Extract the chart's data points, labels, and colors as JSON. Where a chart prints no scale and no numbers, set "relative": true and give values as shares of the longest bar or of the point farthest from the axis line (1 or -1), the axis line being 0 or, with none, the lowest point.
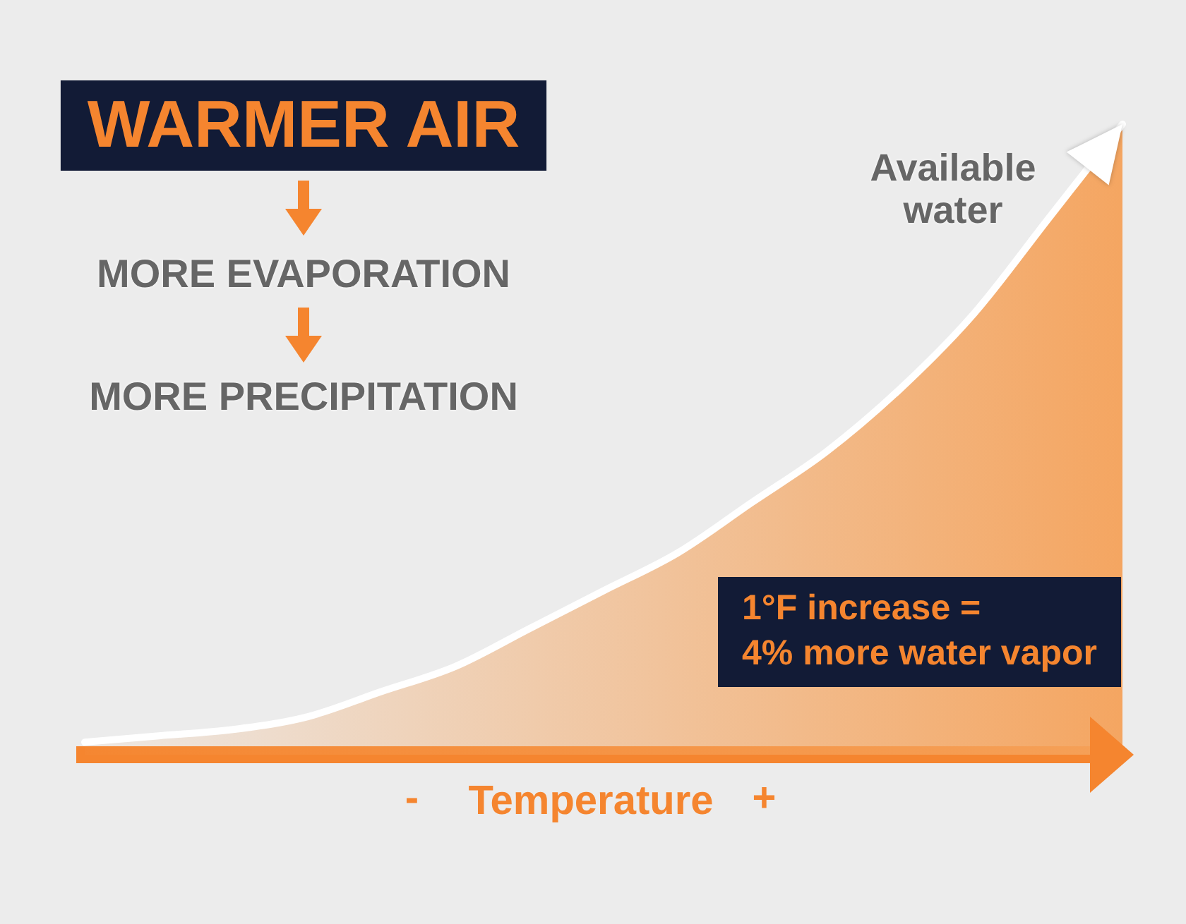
{
  "chart_data": {
    "type": "area",
    "title": "WARMER AIR",
    "xlabel": "Temperature",
    "relative": true,
    "categories": [
      null,
      null,
      null,
      null,
      null,
      null,
      null,
      null,
      null,
      null,
      null,
      null,
      null,
      null,
      null
    ],
    "series": [
      {
        "name": "Available water",
        "color": "#f5a25a",
        "values": [
          0.02,
          0.03,
          0.04,
          0.06,
          0.1,
          0.14,
          0.2,
          0.26,
          0.32,
          0.4,
          0.48,
          0.58,
          0.7,
          0.85,
          1
        ]
      }
    ],
    "annotations": [
      "MORE EVAPORATION",
      "MORE PRECIPITATION",
      "1°F increase =\n4% more water vapor",
      "-",
      "+"
    ]
  }
}
